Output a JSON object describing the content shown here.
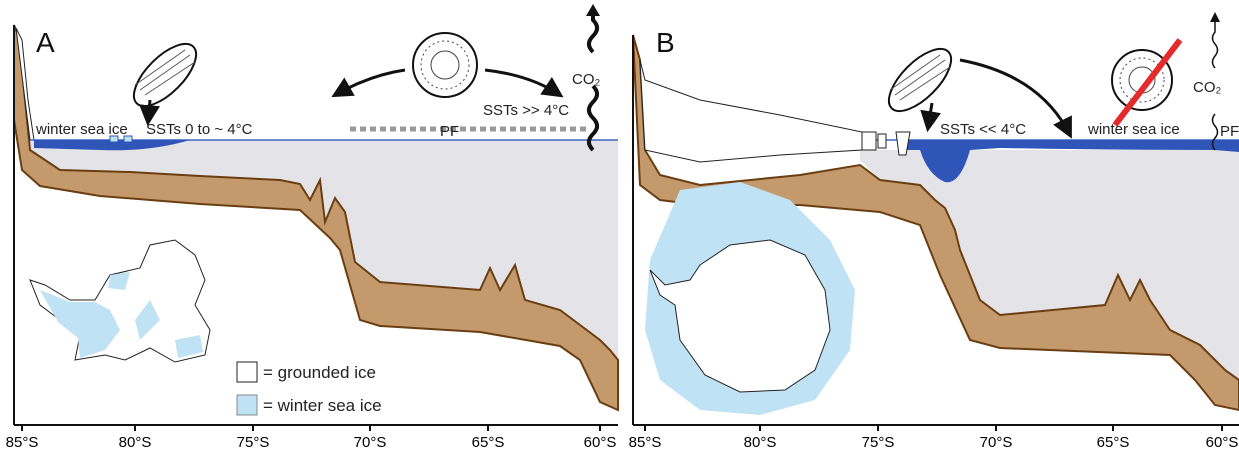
{
  "panels": [
    {
      "label": "A",
      "annotations": [
        "winter sea ice",
        "SSTs 0 to ~ 4°C",
        "SSTs >> 4°C",
        "PF",
        "CO₂"
      ],
      "legend": [
        "= grounded ice",
        "= winter sea ice"
      ],
      "axis_labels": [
        "85°S",
        "80°S",
        "75°S",
        "70°S",
        "65°S",
        "60°S"
      ]
    },
    {
      "label": "B",
      "annotations": [
        "SSTs << 4°C",
        "winter sea ice",
        "PF",
        "CO₂"
      ],
      "axis_labels": [
        "85°S",
        "80°S",
        "75°S",
        "70°S",
        "65°S",
        "60°S"
      ]
    }
  ]
}
